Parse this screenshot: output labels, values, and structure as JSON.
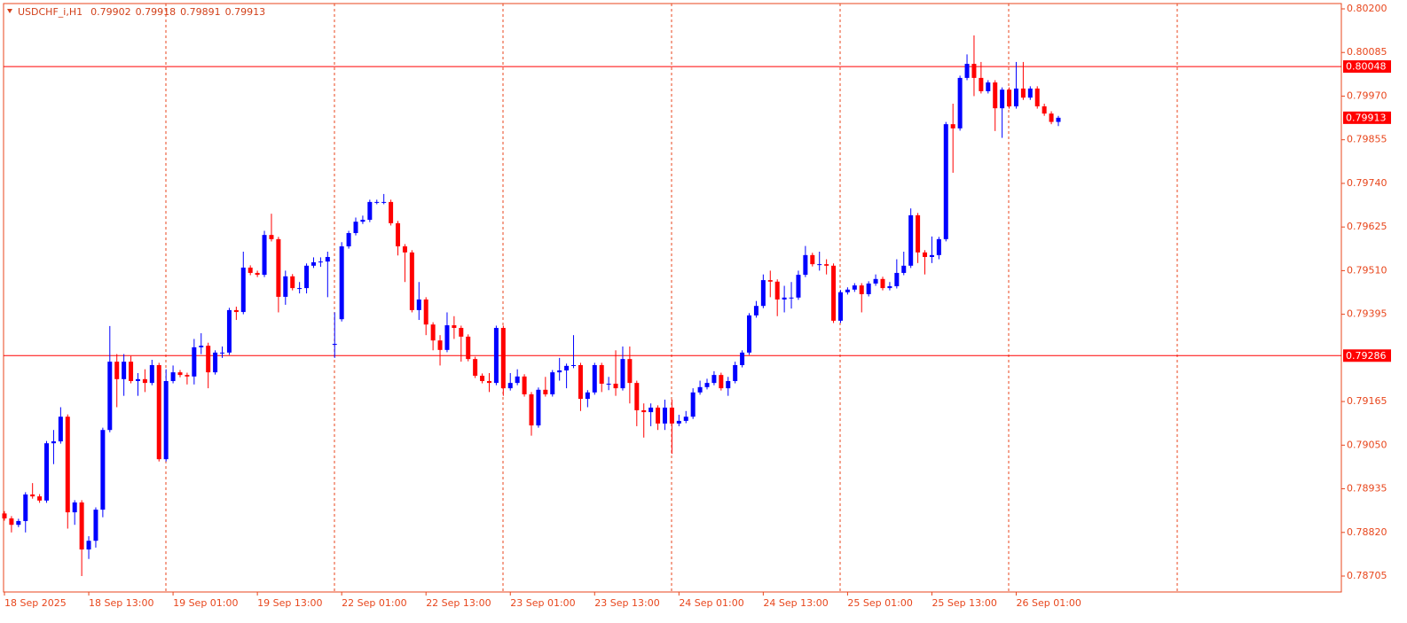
{
  "chart_data": {
    "type": "candlestick",
    "symbol": "USDCHF_i,H1",
    "open": [
      0.7887,
      0.78857,
      0.7884,
      0.7885,
      0.7892,
      0.78915,
      0.78904,
      0.79055,
      0.7906,
      0.79125,
      0.78873,
      0.78899,
      0.78775,
      0.78798,
      0.7888,
      0.7909,
      0.7927,
      0.79224,
      0.7927,
      0.79219,
      0.79224,
      0.79214,
      0.79261,
      0.79013,
      0.79219,
      0.79242,
      0.79235,
      0.79231,
      0.79308,
      0.79312,
      0.79242,
      0.79294,
      0.79294,
      0.79406,
      0.79401,
      0.79518,
      0.79504,
      0.79499,
      0.79604,
      0.79593,
      0.79441,
      0.79495,
      0.79464,
      0.79464,
      0.79523,
      0.79532,
      0.79534,
      0.79317,
      0.79382,
      0.79574,
      0.79609,
      0.79639,
      0.79644,
      0.79691,
      0.79691,
      0.79691,
      0.79635,
      0.79574,
      0.79558,
      0.79406,
      0.79434,
      0.79368,
      0.79326,
      0.79301,
      0.79366,
      0.79359,
      0.79336,
      0.79277,
      0.79233,
      0.79219,
      0.79214,
      0.79359,
      0.792,
      0.79214,
      0.79231,
      0.79184,
      0.79102,
      0.79196,
      0.79184,
      0.79242,
      0.79247,
      0.79259,
      0.79261,
      0.79172,
      0.79189,
      0.79261,
      0.79212,
      0.79212,
      0.792,
      0.79277,
      0.79214,
      0.79142,
      0.79137,
      0.79149,
      0.79107,
      0.79149,
      0.79107,
      0.79114,
      0.79125,
      0.79189,
      0.79203,
      0.79214,
      0.79235,
      0.792,
      0.79219,
      0.79261,
      0.79294,
      0.79392,
      0.79417,
      0.79485,
      0.79481,
      0.79434,
      0.79439,
      0.79439,
      0.79499,
      0.79551,
      0.79527,
      0.79527,
      0.79523,
      0.79378,
      0.79453,
      0.7946,
      0.79471,
      0.79448,
      0.79476,
      0.79488,
      0.79464,
      0.79469,
      0.79504,
      0.79523,
      0.79656,
      0.79558,
      0.79546,
      0.79551,
      0.79593,
      0.79896,
      0.79885,
      0.80018,
      0.80055,
      0.80018,
      0.79983,
      0.80006,
      0.79938,
      0.79987,
      0.79943,
      0.7999,
      0.79966,
      0.7999,
      0.79943,
      0.79924,
      0.79902
    ],
    "high": [
      0.78876,
      0.78863,
      0.78856,
      0.78926,
      0.7895,
      0.78921,
      0.79061,
      0.7909,
      0.7915,
      0.79131,
      0.78905,
      0.78905,
      0.7881,
      0.78886,
      0.79096,
      0.79364,
      0.7929,
      0.7929,
      0.79285,
      0.7924,
      0.7925,
      0.79275,
      0.79267,
      0.7925,
      0.7926,
      0.79248,
      0.79241,
      0.7933,
      0.79345,
      0.7932,
      0.793,
      0.7931,
      0.79412,
      0.79415,
      0.7956,
      0.79524,
      0.7951,
      0.79615,
      0.7966,
      0.79599,
      0.7951,
      0.79501,
      0.7948,
      0.79529,
      0.79545,
      0.79545,
      0.7956,
      0.794,
      0.79585,
      0.79615,
      0.7965,
      0.79655,
      0.79697,
      0.79697,
      0.79712,
      0.79697,
      0.79641,
      0.7958,
      0.79564,
      0.7948,
      0.7944,
      0.79374,
      0.7934,
      0.794,
      0.7939,
      0.79365,
      0.79342,
      0.79283,
      0.79239,
      0.7924,
      0.79365,
      0.79365,
      0.7924,
      0.7925,
      0.79237,
      0.7919,
      0.79202,
      0.7923,
      0.79248,
      0.7928,
      0.79265,
      0.7934,
      0.79267,
      0.79195,
      0.79267,
      0.79267,
      0.7923,
      0.793,
      0.7931,
      0.7931,
      0.7922,
      0.7916,
      0.7916,
      0.79155,
      0.7917,
      0.7917,
      0.7913,
      0.7914,
      0.792,
      0.7922,
      0.79225,
      0.79245,
      0.79241,
      0.7923,
      0.7927,
      0.793,
      0.79398,
      0.7943,
      0.795,
      0.7951,
      0.79487,
      0.7947,
      0.7948,
      0.7951,
      0.79575,
      0.79557,
      0.7956,
      0.7954,
      0.79529,
      0.79459,
      0.79466,
      0.79477,
      0.79477,
      0.79482,
      0.795,
      0.79494,
      0.7948,
      0.7954,
      0.7956,
      0.79674,
      0.79662,
      0.79564,
      0.796,
      0.79599,
      0.79902,
      0.7995,
      0.80024,
      0.8008,
      0.8013,
      0.8006,
      0.80012,
      0.80012,
      0.79993,
      0.79993,
      0.8006,
      0.8006,
      0.79996,
      0.79996,
      0.7995,
      0.7993,
      0.79918
    ],
    "low": [
      0.78851,
      0.7882,
      0.78834,
      0.7882,
      0.78909,
      0.78898,
      0.78898,
      0.79,
      0.79054,
      0.7883,
      0.7884,
      0.78705,
      0.7875,
      0.7878,
      0.7886,
      0.79084,
      0.7915,
      0.7918,
      0.79213,
      0.7918,
      0.7919,
      0.79208,
      0.79007,
      0.79007,
      0.79213,
      0.79229,
      0.7921,
      0.7921,
      0.7929,
      0.792,
      0.79236,
      0.7928,
      0.79288,
      0.7938,
      0.79395,
      0.79498,
      0.79493,
      0.79493,
      0.79587,
      0.794,
      0.7942,
      0.79458,
      0.7945,
      0.7945,
      0.79517,
      0.7952,
      0.7944,
      0.7928,
      0.79376,
      0.79568,
      0.79603,
      0.79633,
      0.79638,
      0.79685,
      0.79685,
      0.79629,
      0.7955,
      0.7948,
      0.794,
      0.7938,
      0.7934,
      0.793,
      0.7926,
      0.79295,
      0.7933,
      0.7927,
      0.79271,
      0.79227,
      0.79213,
      0.7919,
      0.79208,
      0.7918,
      0.79194,
      0.79208,
      0.79178,
      0.79075,
      0.79096,
      0.79178,
      0.79178,
      0.7922,
      0.792,
      0.79253,
      0.7914,
      0.7915,
      0.79183,
      0.7919,
      0.79195,
      0.7918,
      0.79194,
      0.7916,
      0.791,
      0.7907,
      0.791,
      0.7909,
      0.7909,
      0.79027,
      0.791,
      0.79108,
      0.79119,
      0.79183,
      0.79197,
      0.79208,
      0.79194,
      0.7918,
      0.79213,
      0.79255,
      0.79288,
      0.79386,
      0.79411,
      0.7944,
      0.7939,
      0.794,
      0.7941,
      0.79433,
      0.79493,
      0.79521,
      0.7951,
      0.795,
      0.79372,
      0.79372,
      0.79447,
      0.79454,
      0.794,
      0.79442,
      0.7947,
      0.79458,
      0.79458,
      0.79463,
      0.79498,
      0.79517,
      0.7953,
      0.795,
      0.7953,
      0.7954,
      0.79587,
      0.79768,
      0.79879,
      0.80012,
      0.7997,
      0.79977,
      0.79977,
      0.79878,
      0.7986,
      0.79937,
      0.79937,
      0.7996,
      0.7996,
      0.79937,
      0.79918,
      0.79896,
      0.79891
    ],
    "close": [
      0.78857,
      0.7884,
      0.7885,
      0.7892,
      0.78915,
      0.78904,
      0.79055,
      0.7906,
      0.79125,
      0.78873,
      0.78899,
      0.78775,
      0.78798,
      0.7888,
      0.7909,
      0.7927,
      0.79224,
      0.7927,
      0.79219,
      0.79224,
      0.79214,
      0.79261,
      0.79013,
      0.79219,
      0.79242,
      0.79235,
      0.79231,
      0.79308,
      0.79312,
      0.79242,
      0.79294,
      0.79294,
      0.79406,
      0.79401,
      0.79518,
      0.79504,
      0.79499,
      0.79604,
      0.79593,
      0.79441,
      0.79495,
      0.79464,
      0.79464,
      0.79523,
      0.79532,
      0.79534,
      0.79546,
      0.79317,
      0.79574,
      0.79609,
      0.79639,
      0.79644,
      0.79691,
      0.79691,
      0.79691,
      0.79635,
      0.79574,
      0.79558,
      0.79406,
      0.79434,
      0.79368,
      0.79326,
      0.79301,
      0.79366,
      0.79359,
      0.79336,
      0.79277,
      0.79233,
      0.79219,
      0.79214,
      0.79359,
      0.792,
      0.79214,
      0.79231,
      0.79184,
      0.79102,
      0.79196,
      0.79184,
      0.79242,
      0.79247,
      0.79259,
      0.79261,
      0.79172,
      0.79189,
      0.79261,
      0.79212,
      0.79212,
      0.792,
      0.79277,
      0.79214,
      0.79142,
      0.79137,
      0.79149,
      0.79107,
      0.79149,
      0.79107,
      0.79114,
      0.79125,
      0.79189,
      0.79203,
      0.79214,
      0.79235,
      0.792,
      0.79219,
      0.79261,
      0.79294,
      0.79392,
      0.79417,
      0.79485,
      0.79481,
      0.79434,
      0.79439,
      0.79439,
      0.79499,
      0.79551,
      0.79527,
      0.79527,
      0.79523,
      0.79378,
      0.79453,
      0.7946,
      0.79471,
      0.79448,
      0.79476,
      0.79488,
      0.79464,
      0.79469,
      0.79504,
      0.79523,
      0.79656,
      0.79558,
      0.79546,
      0.79551,
      0.79593,
      0.79896,
      0.79885,
      0.80018,
      0.80055,
      0.80018,
      0.79983,
      0.80006,
      0.79938,
      0.79987,
      0.79943,
      0.7999,
      0.79966,
      0.7999,
      0.79943,
      0.79924,
      0.79902,
      0.79913
    ],
    "bull_color": "#0000ff",
    "bear_color": "#ff0000",
    "hlines": [
      0.80048,
      0.79286
    ],
    "hline_color": "#ff0000",
    "ylim": [
      0.78663,
      0.80214
    ],
    "yticks": [
      {
        "value": 0.802,
        "label": "0.80200"
      },
      0.80085,
      {
        "value": 0.7997,
        "label": "0.79970"
      },
      0.79855,
      {
        "value": 0.7974,
        "label": "0.79740"
      },
      0.79625,
      {
        "value": 0.7951,
        "label": "0.79510"
      },
      0.79395,
      0.79165,
      {
        "value": 0.7905,
        "label": "0.79050"
      },
      0.78935,
      {
        "value": 0.7882,
        "label": "0.78820"
      },
      0.78705
    ],
    "xticks": [
      {
        "value": 0,
        "label": "18 Sep 2025"
      },
      {
        "value": 12,
        "label": "18 Sep 13:00"
      },
      {
        "value": 24,
        "label": "19 Sep 01:00"
      },
      {
        "value": 36,
        "label": "19 Sep 13:00"
      },
      {
        "value": 48,
        "label": "22 Sep 01:00"
      },
      {
        "value": 60,
        "label": "22 Sep 13:00"
      },
      {
        "value": 72,
        "label": "23 Sep 01:00"
      },
      {
        "value": 84,
        "label": "23 Sep 13:00"
      },
      {
        "value": 96,
        "label": "24 Sep 01:00"
      },
      {
        "value": 108,
        "label": "24 Sep 13:00"
      },
      {
        "value": 120,
        "label": "25 Sep 01:00"
      },
      {
        "value": 132,
        "label": "25 Sep 13:00"
      },
      {
        "value": 144,
        "label": "26 Sep 01:00"
      }
    ],
    "grid": true
  }
}
